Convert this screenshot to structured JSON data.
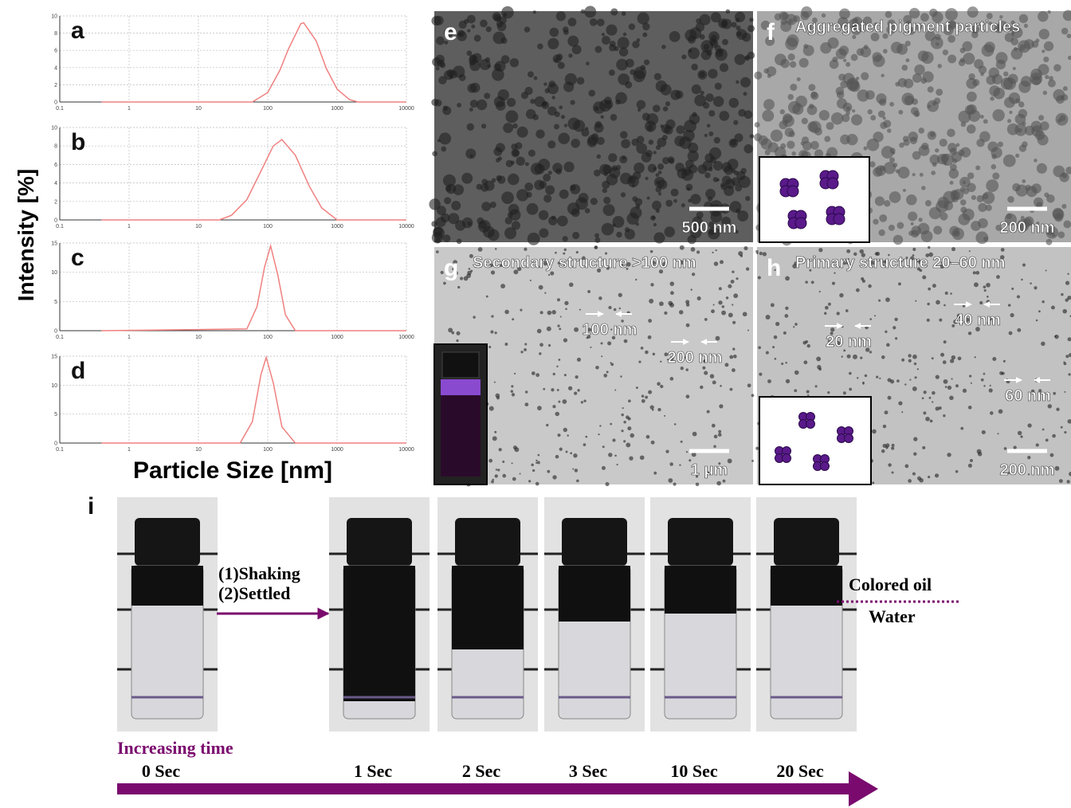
{
  "chart_data": [
    {
      "type": "line",
      "label": "a",
      "color": "#f08080",
      "xscale": "log",
      "grid": true,
      "x": [
        0.4,
        60,
        100,
        150,
        200,
        300,
        330,
        500,
        700,
        1000,
        1500,
        2000,
        10000
      ],
      "values": [
        0,
        0,
        1.1,
        3.7,
        6.2,
        9.1,
        9.2,
        7.1,
        3.9,
        1.5,
        0.3,
        0,
        0
      ],
      "xlim": [
        0.1,
        10000
      ],
      "xticks": [
        0.1,
        1,
        10,
        100,
        1000,
        10000
      ],
      "ylim": [
        0,
        10
      ],
      "yticks": [
        0,
        2,
        4,
        6,
        8,
        10
      ]
    },
    {
      "type": "line",
      "label": "b",
      "color": "#f08080",
      "xscale": "log",
      "grid": true,
      "x": [
        0.4,
        20,
        30,
        50,
        80,
        120,
        160,
        250,
        400,
        600,
        1000,
        10000
      ],
      "values": [
        0,
        0,
        0.5,
        2.2,
        5.3,
        8.0,
        8.7,
        7.0,
        3.6,
        1.3,
        0,
        0
      ],
      "xlim": [
        0.1,
        10000
      ],
      "xticks": [
        0.1,
        1,
        10,
        100,
        1000,
        10000
      ],
      "ylim": [
        0,
        10
      ],
      "yticks": [
        0,
        2,
        4,
        6,
        8,
        10
      ]
    },
    {
      "type": "line",
      "label": "c",
      "color": "#f08080",
      "xscale": "log",
      "grid": true,
      "x": [
        0.4,
        50,
        70,
        90,
        110,
        140,
        180,
        250,
        10000
      ],
      "values": [
        0,
        0.3,
        4.1,
        10.9,
        14.5,
        9.5,
        2.7,
        0,
        0
      ],
      "xlim": [
        0.1,
        10000
      ],
      "xticks": [
        0.1,
        1,
        10,
        100,
        1000,
        10000
      ],
      "ylim": [
        0,
        15
      ],
      "yticks": [
        0,
        5,
        10,
        15
      ]
    },
    {
      "type": "line",
      "label": "d",
      "color": "#f08080",
      "xscale": "log",
      "grid": true,
      "x": [
        0.4,
        40,
        60,
        80,
        95,
        120,
        160,
        250,
        10000
      ],
      "values": [
        0,
        0,
        3.7,
        11.9,
        14.8,
        10.4,
        2.8,
        0,
        0
      ],
      "xlim": [
        0.1,
        10000
      ],
      "xticks": [
        0.1,
        1,
        10,
        100,
        1000,
        10000
      ],
      "ylim": [
        0,
        15
      ],
      "yticks": [
        0,
        5,
        10,
        15
      ]
    }
  ],
  "axis_labels": {
    "y": "Intensity [%]",
    "x": "Particle Size [nm]"
  },
  "micrographs": [
    {
      "label": "e",
      "scale_bar": "500 nm"
    },
    {
      "label": "f",
      "title": "Aggregated pigment particles",
      "scale_bar": "200 nm"
    },
    {
      "label": "g",
      "title": "Secondary structure >100 nm",
      "scale_bar": "1 μm",
      "annotations": [
        "100 nm",
        "200 nm"
      ]
    },
    {
      "label": "h",
      "title": "Primary structure 20–60  nm",
      "scale_bar": "200 nm",
      "annotations": [
        "20 nm",
        "40 nm",
        "60 nm"
      ]
    }
  ],
  "panel_i": {
    "label": "i",
    "steps": [
      "(1)Shaking",
      "(2)Settled"
    ],
    "layers": [
      "Colored oil",
      "Water"
    ],
    "trend": "Increasing time",
    "times": [
      "0 Sec",
      "1 Sec",
      "2 Sec",
      "3 Sec",
      "10 Sec",
      "20 Sec"
    ]
  }
}
